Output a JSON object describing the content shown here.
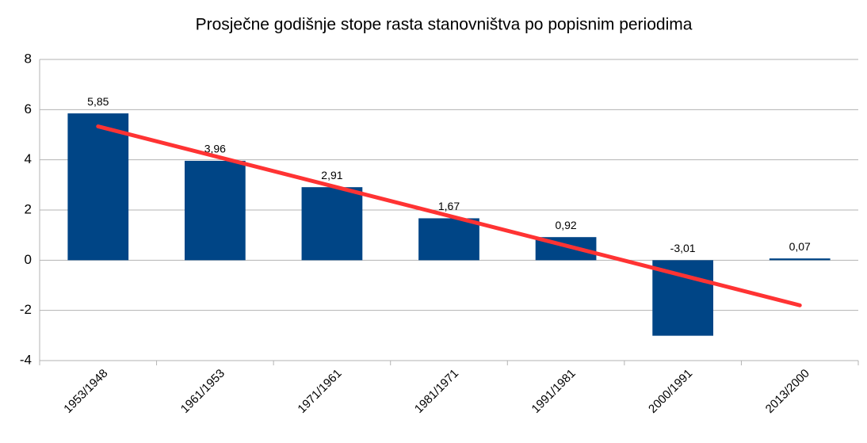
{
  "chart_data": {
    "type": "bar",
    "title": "Prosječne godišnje stope rasta stanovništva po popisnim periodima",
    "categories": [
      "1953/1948",
      "1961/1953",
      "1971/1961",
      "1981/1971",
      "1991/1981",
      "2000/1991",
      "2013/2000"
    ],
    "values": [
      5.85,
      3.96,
      2.91,
      1.67,
      0.92,
      -3.01,
      0.07
    ],
    "value_labels": [
      "5,85",
      "3,96",
      "2,91",
      "1,67",
      "0,92",
      "-3,01",
      "0,07"
    ],
    "color": "#004586",
    "ylim": [
      -4,
      8
    ],
    "yticks": [
      -4,
      -2,
      0,
      2,
      4,
      6,
      8
    ],
    "grid": true,
    "trendline": {
      "type": "linear",
      "color": "#ff3333"
    }
  }
}
